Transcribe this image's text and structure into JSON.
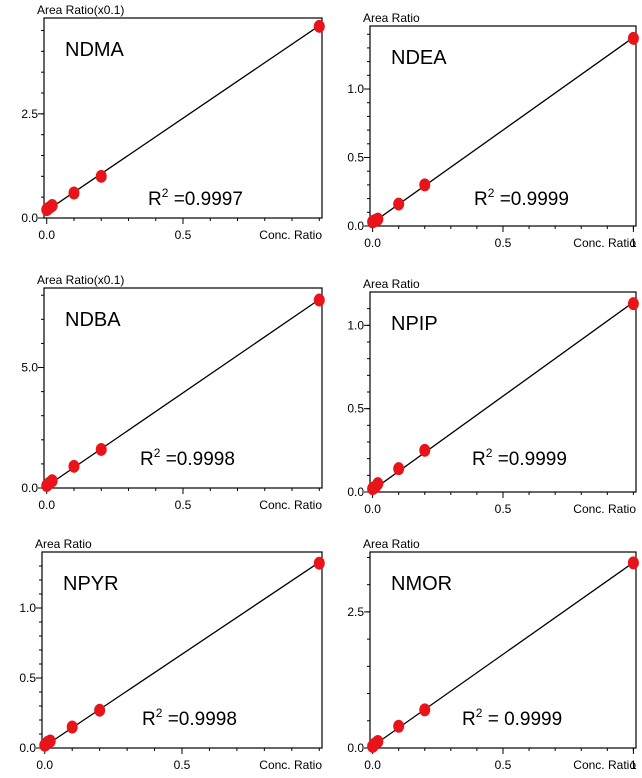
{
  "colors": {
    "frame": "#000000",
    "fit_line": "#000000",
    "points": "#e8141a",
    "background": "#ffffff"
  },
  "chart_data": [
    {
      "type": "scatter",
      "title": "NDMA",
      "ylabel": "Area Ratio(x0.1)",
      "xlabel": "Conc. Ratio",
      "xlim": [
        -0.01,
        1.01
      ],
      "ylim": [
        0,
        4.8
      ],
      "xticks": [
        {
          "v": 0.0,
          "label": "0.0"
        },
        {
          "v": 0.5,
          "label": "0.5"
        }
      ],
      "yticks": [
        {
          "v": 0.0,
          "label": "0.0"
        },
        {
          "v": 2.5,
          "label": "2.5"
        }
      ],
      "points": {
        "x": [
          0.0,
          0.004,
          0.01,
          0.02,
          0.1,
          0.2,
          1.0
        ],
        "y": [
          0.2,
          0.22,
          0.25,
          0.3,
          0.6,
          1.0,
          4.6
        ]
      },
      "fit_line": {
        "x": [
          -0.01,
          1.01
        ],
        "y": [
          0.13,
          4.66
        ]
      },
      "r2_prefix": "R",
      "r2_exp": "2",
      "r2_value": " =0.9997"
    },
    {
      "type": "scatter",
      "title": "NDEA",
      "ylabel": "Area Ratio",
      "xlabel": "Conc. Ratio",
      "xlim": [
        -0.01,
        1.01
      ],
      "ylim": [
        0,
        1.46
      ],
      "xticks": [
        {
          "v": 0.0,
          "label": "0.0"
        },
        {
          "v": 0.5,
          "label": "0.5"
        },
        {
          "v": 1.0,
          "label": "1"
        }
      ],
      "yticks": [
        {
          "v": 0.0,
          "label": "0.0"
        },
        {
          "v": 0.5,
          "label": "0.5"
        },
        {
          "v": 1.0,
          "label": "1.0"
        }
      ],
      "points": {
        "x": [
          0.0,
          0.004,
          0.01,
          0.02,
          0.1,
          0.2,
          1.0
        ],
        "y": [
          0.03,
          0.035,
          0.04,
          0.05,
          0.16,
          0.3,
          1.37
        ]
      },
      "fit_line": {
        "x": [
          -0.01,
          1.01
        ],
        "y": [
          0.01,
          1.39
        ]
      },
      "r2_prefix": "R",
      "r2_exp": "2",
      "r2_value": " =0.9999"
    },
    {
      "type": "scatter",
      "title": "NDBA",
      "ylabel": "Area Ratio(x0.1)",
      "xlabel": "Conc. Ratio",
      "xlim": [
        -0.01,
        1.01
      ],
      "ylim": [
        0,
        8.3
      ],
      "xticks": [
        {
          "v": 0.0,
          "label": "0.0"
        },
        {
          "v": 0.5,
          "label": "0.5"
        }
      ],
      "yticks": [
        {
          "v": 0.0,
          "label": "0.0"
        },
        {
          "v": 5.0,
          "label": "5.0"
        }
      ],
      "points": {
        "x": [
          0.0,
          0.004,
          0.01,
          0.02,
          0.1,
          0.2,
          1.0
        ],
        "y": [
          0.1,
          0.15,
          0.2,
          0.3,
          0.9,
          1.6,
          7.8
        ]
      },
      "fit_line": {
        "x": [
          -0.01,
          1.01
        ],
        "y": [
          0.0,
          7.9
        ]
      },
      "r2_prefix": "R",
      "r2_exp": "2",
      "r2_value": " =0.9998"
    },
    {
      "type": "scatter",
      "title": "NPIP",
      "ylabel": "Area Ratio",
      "xlabel": "Conc. Ratio",
      "xlim": [
        -0.01,
        1.01
      ],
      "ylim": [
        0,
        1.2
      ],
      "xticks": [
        {
          "v": 0.0,
          "label": "0.0"
        },
        {
          "v": 0.5,
          "label": "0.5"
        }
      ],
      "yticks": [
        {
          "v": 0.0,
          "label": "0.0"
        },
        {
          "v": 0.5,
          "label": "0.5"
        },
        {
          "v": 1.0,
          "label": "1.0"
        }
      ],
      "points": {
        "x": [
          0.0,
          0.004,
          0.01,
          0.02,
          0.1,
          0.2,
          1.0
        ],
        "y": [
          0.02,
          0.025,
          0.03,
          0.05,
          0.14,
          0.25,
          1.13
        ]
      },
      "fit_line": {
        "x": [
          -0.01,
          1.01
        ],
        "y": [
          0.0,
          1.15
        ]
      },
      "r2_prefix": "R",
      "r2_exp": "2",
      "r2_value": " =0.9999"
    },
    {
      "type": "scatter",
      "title": "NPYR",
      "ylabel": "Area Ratio",
      "xlabel": "Conc. Ratio",
      "xlim": [
        -0.01,
        1.01
      ],
      "ylim": [
        0,
        1.4
      ],
      "xticks": [
        {
          "v": 0.0,
          "label": "0.0"
        },
        {
          "v": 0.5,
          "label": "0.5"
        }
      ],
      "yticks": [
        {
          "v": 0.0,
          "label": "0.0"
        },
        {
          "v": 0.5,
          "label": "0.5"
        },
        {
          "v": 1.0,
          "label": "1.0"
        }
      ],
      "points": {
        "x": [
          0.0,
          0.004,
          0.01,
          0.02,
          0.1,
          0.2,
          1.0
        ],
        "y": [
          0.02,
          0.025,
          0.04,
          0.05,
          0.15,
          0.27,
          1.32
        ]
      },
      "fit_line": {
        "x": [
          -0.01,
          1.01
        ],
        "y": [
          0.0,
          1.34
        ]
      },
      "r2_prefix": "R",
      "r2_exp": "2",
      "r2_value": " =0.9998"
    },
    {
      "type": "scatter",
      "title": "NMOR",
      "ylabel": "Area Ratio",
      "xlabel": "Conc. Ratio",
      "xlim": [
        -0.01,
        1.01
      ],
      "ylim": [
        0,
        3.6
      ],
      "xticks": [
        {
          "v": 0.0,
          "label": "0.0"
        },
        {
          "v": 0.5,
          "label": "0.5"
        },
        {
          "v": 1.0,
          "label": "1"
        }
      ],
      "yticks": [
        {
          "v": 0.0,
          "label": "0.0"
        },
        {
          "v": 2.5,
          "label": "2.5"
        }
      ],
      "points": {
        "x": [
          0.0,
          0.004,
          0.01,
          0.02,
          0.1,
          0.2,
          1.0
        ],
        "y": [
          0.03,
          0.05,
          0.08,
          0.12,
          0.4,
          0.7,
          3.4
        ]
      },
      "fit_line": {
        "x": [
          -0.01,
          1.01
        ],
        "y": [
          0.0,
          3.44
        ]
      },
      "r2_prefix": "R",
      "r2_exp": "2",
      "r2_value": " = 0.9999"
    }
  ]
}
